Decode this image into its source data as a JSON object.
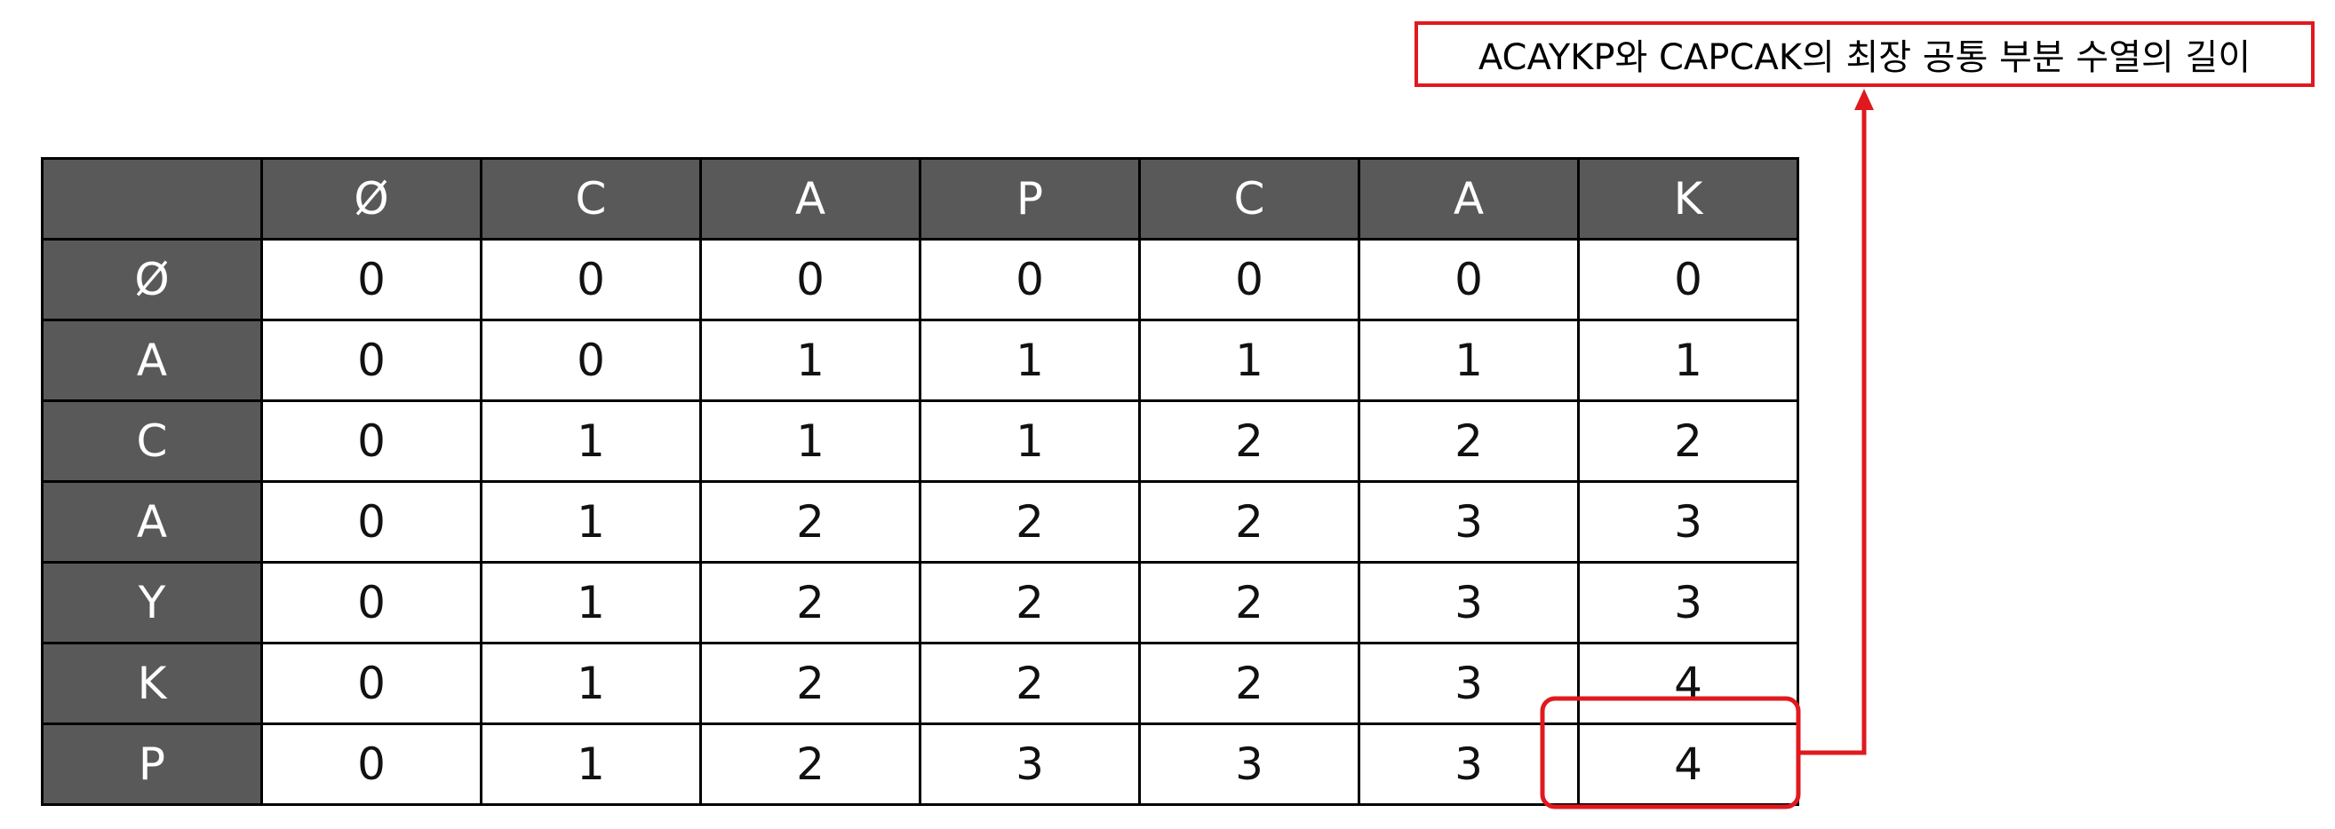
{
  "caption": "ACAYKP와 CAPCAK의 최장 공통 부분 수열의 길이",
  "colors": {
    "header_bg": "#595959",
    "header_text": "#ffffff",
    "highlight": "#e0191e"
  },
  "table": {
    "corner": "",
    "columns": [
      "Ø",
      "C",
      "A",
      "P",
      "C",
      "A",
      "K"
    ],
    "rows": [
      {
        "label": "Ø",
        "cells": [
          "0",
          "0",
          "0",
          "0",
          "0",
          "0",
          "0"
        ]
      },
      {
        "label": "A",
        "cells": [
          "0",
          "0",
          "1",
          "1",
          "1",
          "1",
          "1"
        ]
      },
      {
        "label": "C",
        "cells": [
          "0",
          "1",
          "1",
          "1",
          "2",
          "2",
          "2"
        ]
      },
      {
        "label": "A",
        "cells": [
          "0",
          "1",
          "2",
          "2",
          "2",
          "3",
          "3"
        ]
      },
      {
        "label": "Y",
        "cells": [
          "0",
          "1",
          "2",
          "2",
          "2",
          "3",
          "3"
        ]
      },
      {
        "label": "K",
        "cells": [
          "0",
          "1",
          "2",
          "2",
          "2",
          "3",
          "4"
        ]
      },
      {
        "label": "P",
        "cells": [
          "0",
          "1",
          "2",
          "3",
          "3",
          "3",
          "4"
        ]
      }
    ]
  }
}
